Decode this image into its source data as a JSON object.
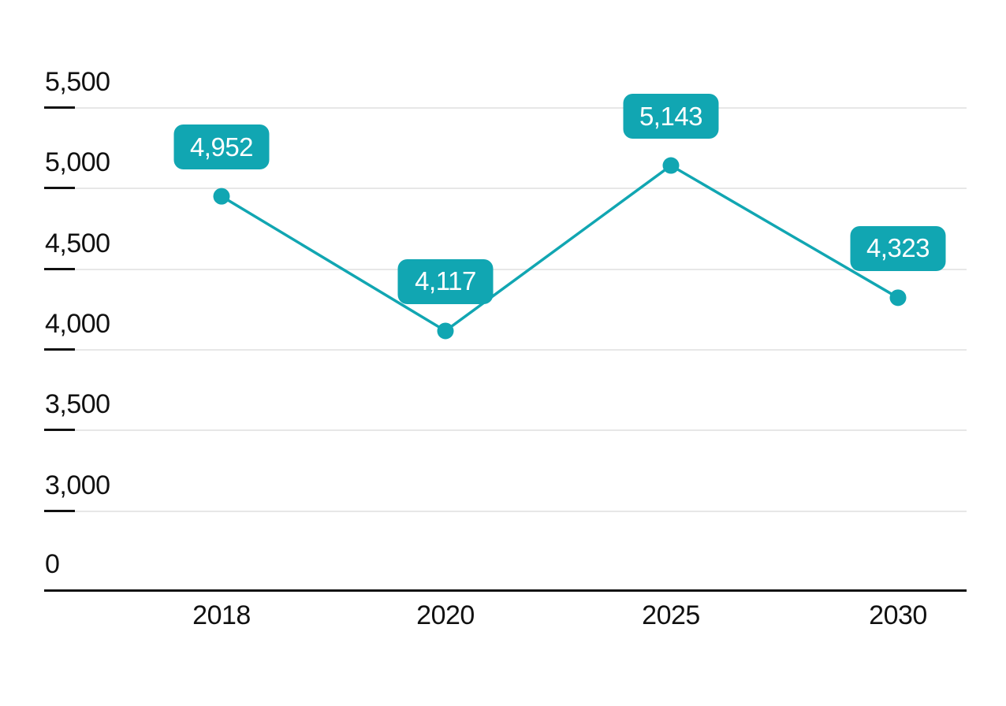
{
  "chart_data": {
    "type": "line",
    "categories": [
      "2018",
      "2020",
      "2025",
      "2030"
    ],
    "values": [
      4952,
      4117,
      5143,
      4323
    ],
    "data_labels": [
      "4,952",
      "4,117",
      "5,143",
      "4,323"
    ],
    "y_ticks": [
      "5,500",
      "5,000",
      "4,500",
      "4,000",
      "3,500",
      "3,000",
      "0"
    ],
    "y_tick_values": [
      5500,
      5000,
      4500,
      4000,
      3500,
      3000,
      0
    ],
    "title": "",
    "xlabel": "",
    "ylabel": "",
    "axis_note": "broken y-axis: 0 at baseline, then 3,000 to 5,500 in steps of 500",
    "grid": true,
    "legend_position": "none",
    "colors": {
      "series": "#11A6B2",
      "data_label_bg": "#11A6B2",
      "data_label_text": "#FFFFFF",
      "gridline": "#E7E7E7",
      "axis_line": "#111111",
      "tick": "#111111",
      "axis_text": "#111111",
      "background": "#FFFFFF"
    }
  }
}
